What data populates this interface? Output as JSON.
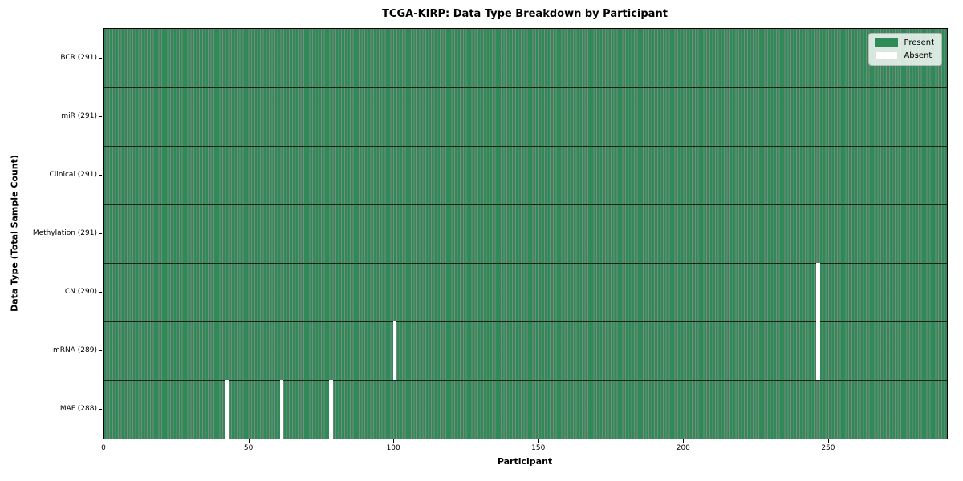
{
  "colors": {
    "present": "#2e8b57",
    "absent": "#ffffff",
    "cell_edge": "rgba(8,28,16,0.52)",
    "row_separator": "rgba(8,18,10,0.85)",
    "plot_border": "#000000",
    "legend_bg": "rgba(255,255,255,0.8)",
    "legend_border": "#b3bdb3",
    "absent_swatch_border": "#dde3dd",
    "text": "#000000"
  },
  "chart_data": {
    "type": "heatmap",
    "title": "TCGA-KIRP: Data Type Breakdown by Participant",
    "xlabel": "Participant",
    "ylabel": "Data Type (Total Sample Count)",
    "n_participants": 291,
    "x_ticks": [
      0,
      50,
      100,
      150,
      200,
      250
    ],
    "legend": [
      {
        "label": "Present",
        "color": "#2e8b57"
      },
      {
        "label": "Absent",
        "color": "#ffffff"
      }
    ],
    "rows": [
      {
        "label": "BCR (291)",
        "data_type": "BCR",
        "total_samples": 291,
        "absent_participants": []
      },
      {
        "label": "miR (291)",
        "data_type": "miR",
        "total_samples": 291,
        "absent_participants": []
      },
      {
        "label": "Clinical (291)",
        "data_type": "Clinical",
        "total_samples": 291,
        "absent_participants": []
      },
      {
        "label": "Methylation (291)",
        "data_type": "Methylation",
        "total_samples": 291,
        "absent_participants": []
      },
      {
        "label": "CN (290)",
        "data_type": "CN",
        "total_samples": 290,
        "absent_participants": [
          246
        ]
      },
      {
        "label": "mRNA (289)",
        "data_type": "mRNA",
        "total_samples": 289,
        "absent_participants": [
          100,
          246
        ]
      },
      {
        "label": "MAF (288)",
        "data_type": "MAF",
        "total_samples": 288,
        "absent_participants": [
          42,
          61,
          78
        ]
      }
    ]
  }
}
